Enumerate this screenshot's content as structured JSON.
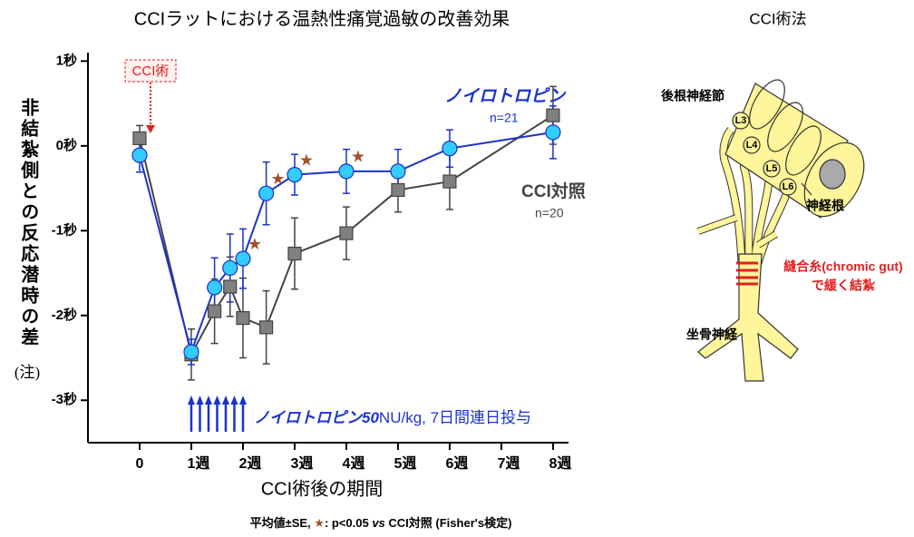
{
  "chart_data": {
    "type": "line",
    "title": "CCIラットにおける温熱性痛覚過敏の改善効果",
    "y_label": "非結紮側との反応潜時の差",
    "y_label_note": "(注)",
    "x_label": "CCI術後の期間",
    "xlim": [
      -1,
      8.3
    ],
    "ylim": [
      -3.5,
      1.1
    ],
    "xticks": [
      0,
      {
        "value": 1,
        "label": "1週"
      },
      {
        "value": 2,
        "label": "2週"
      },
      {
        "value": 3,
        "label": "3週"
      },
      {
        "value": 4,
        "label": "4週"
      },
      {
        "value": 5,
        "label": "5週"
      },
      {
        "value": 6,
        "label": "6週"
      },
      {
        "value": 7,
        "label": "7週"
      },
      {
        "value": 8,
        "label": "8週"
      }
    ],
    "yticks": [
      {
        "value": 1,
        "label": "1秒"
      },
      {
        "value": 0,
        "label": "0秒"
      },
      {
        "value": -1,
        "label": "-1秒"
      },
      {
        "value": -2,
        "label": "-2秒"
      },
      {
        "value": -3,
        "label": "-3秒"
      }
    ],
    "series": [
      {
        "name": "CCI対照",
        "n_label": "n=20",
        "color": "#444444",
        "marker": "square",
        "marker_color": "#808080",
        "x": [
          0,
          1,
          1.45,
          1.75,
          2,
          2.45,
          3,
          4,
          5,
          6,
          8
        ],
        "values": [
          0.09,
          -2.46,
          -1.95,
          -1.66,
          -2.03,
          -2.14,
          -1.27,
          -1.03,
          -0.52,
          -0.42,
          0.36
        ],
        "errors": [
          0.15,
          0.3,
          0.38,
          0.35,
          0.47,
          0.43,
          0.42,
          0.31,
          0.26,
          0.33,
          0.34
        ]
      },
      {
        "name": "ノイロトロピン",
        "n_label": "n=21",
        "color": "#1a33cc",
        "marker": "circle",
        "marker_color": "#33ccff",
        "x": [
          0,
          1,
          1.45,
          1.75,
          2,
          2.45,
          3,
          4,
          5,
          6,
          8
        ],
        "values": [
          -0.11,
          -2.43,
          -1.67,
          -1.44,
          -1.33,
          -0.56,
          -0.34,
          -0.3,
          -0.3,
          -0.03,
          0.16
        ],
        "errors": [
          0.2,
          0.15,
          0.35,
          0.4,
          0.35,
          0.37,
          0.24,
          0.26,
          0.26,
          0.22,
          0.31
        ],
        "significant_indices": [
          4,
          5,
          6,
          7
        ]
      }
    ],
    "annotations": {
      "surgery": "CCI術",
      "dosing_bold": "ノイロトロピン50",
      "dosing_rest": "NU/kg, 7日間連日投与"
    },
    "footnote": [
      "平均値±SE, ",
      "★",
      ": p<0.05 ",
      "vs",
      " CCI対照 (Fisher's検定)"
    ]
  },
  "diagram": {
    "title": "CCI術法",
    "labels": {
      "drg": "後根神経節",
      "l3": "L3",
      "l4": "L4",
      "l5": "L5",
      "l6": "L6",
      "root": "神経根",
      "ligature1": "縫合糸(chromic gut)",
      "ligature2": "で緩く結紮",
      "sciatic": "坐骨神経"
    }
  }
}
